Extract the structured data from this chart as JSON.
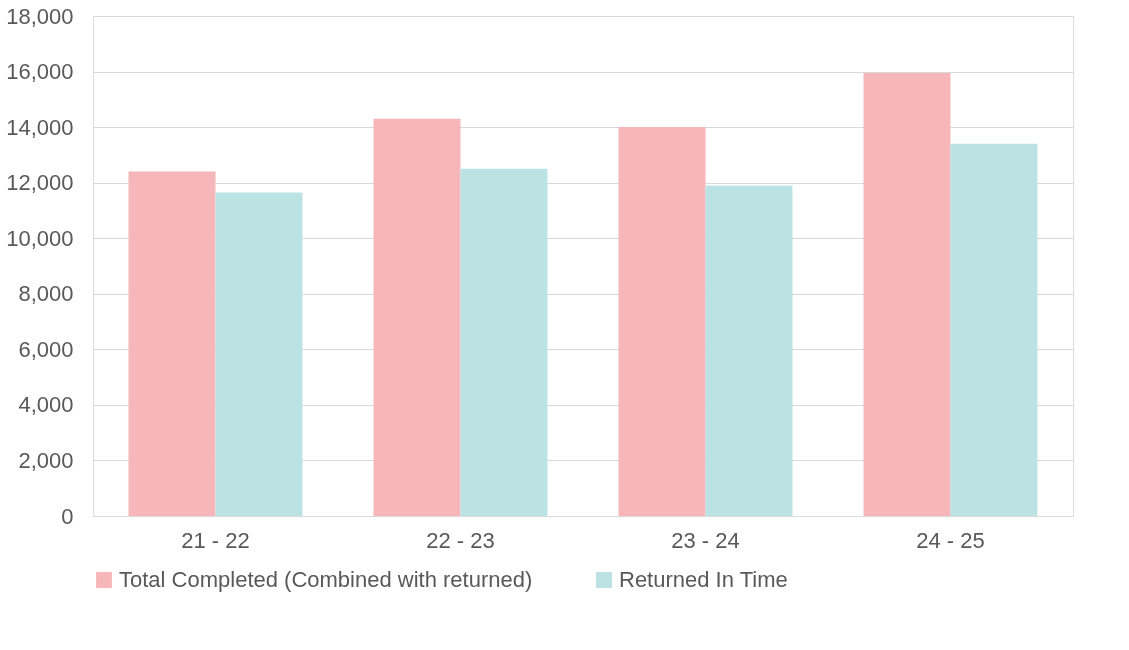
{
  "chart_data": {
    "type": "bar",
    "categories": [
      "21 - 22",
      "22 - 23",
      "23 - 24",
      "24 - 25"
    ],
    "series": [
      {
        "name": "Total Completed (Combined with returned)",
        "color": "#f7b6b9",
        "values": [
          12400,
          14300,
          14000,
          15950
        ]
      },
      {
        "name": "Returned In Time",
        "color": "#bbe3e3",
        "values": [
          11650,
          12500,
          11900,
          13400
        ]
      }
    ],
    "ylim": [
      0,
      18000
    ],
    "yticks": [
      0,
      {
        "value": 2000,
        "label": "2,000"
      },
      {
        "value": 4000,
        "label": "4,000"
      },
      {
        "value": 6000,
        "label": "6,000"
      },
      {
        "value": 8000,
        "label": "8,000"
      },
      {
        "value": 10000,
        "label": "10,000"
      },
      {
        "value": 12000,
        "label": "12,000"
      },
      {
        "value": 14000,
        "label": "14,000"
      },
      {
        "value": 16000,
        "label": "16,000"
      },
      {
        "value": 18000,
        "label": "18,000"
      }
    ],
    "grid": "y",
    "legend": "bottom"
  }
}
